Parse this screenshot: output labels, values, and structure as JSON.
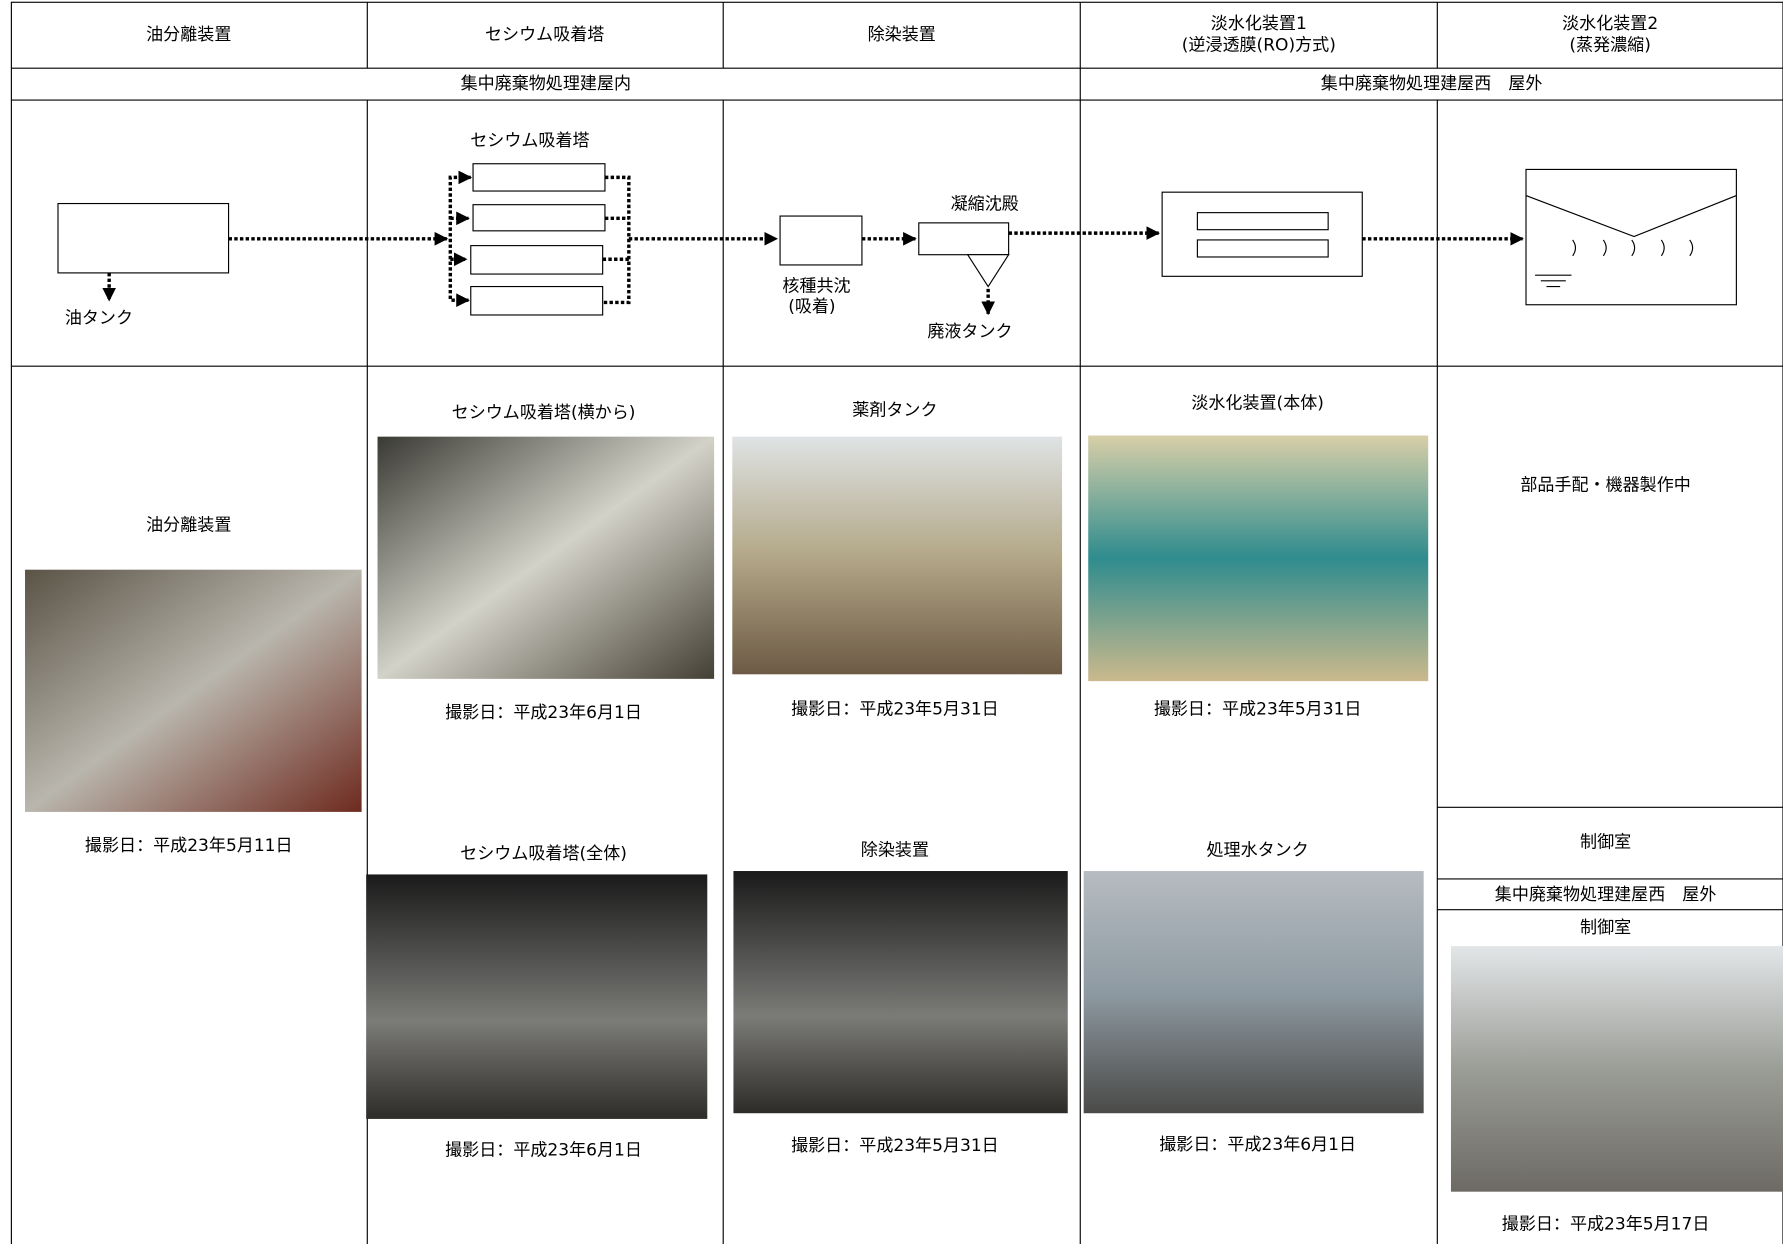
{
  "headers": [
    [
      "油分離装置"
    ],
    [
      "セシウム吸着塔"
    ],
    [
      "除染装置"
    ],
    [
      "淡水化装置1",
      "(逆浸透膜(RO)方式)"
    ],
    [
      "淡水化装置2",
      "(蒸発濃縮)"
    ]
  ],
  "locations": [
    "集中廃棄物処理建屋内",
    "集中廃棄物処理建屋西　屋外"
  ],
  "diagram": {
    "oil_tank": "油タンク",
    "cesium_tower": "セシウム吸着塔",
    "coprecipitation": [
      "核種共沈",
      "(吸着)"
    ],
    "coagulation": "凝縮沈殿",
    "waste_tank": "廃液タンク"
  },
  "photos": [
    {
      "title": "油分離装置",
      "date": "撮影日：平成23年5月11日"
    },
    {
      "title": "セシウム吸着塔(横から)",
      "date": "撮影日：平成23年6月1日"
    },
    {
      "title": "セシウム吸着塔(全体)",
      "date": "撮影日：平成23年6月1日"
    },
    {
      "title": "薬剤タンク",
      "date": "撮影日：平成23年5月31日"
    },
    {
      "title": "除染装置",
      "date": "撮影日：平成23年5月31日"
    },
    {
      "title": "淡水化装置(本体)",
      "date": "撮影日：平成23年5月31日"
    },
    {
      "title": "処理水タンク",
      "date": "撮影日：平成23年6月1日"
    }
  ],
  "status": "部品手配・機器製作中",
  "control_room": {
    "header": "制御室",
    "location": "集中廃棄物処理建屋西　屋外",
    "title": "制御室",
    "date": "撮影日：平成23年5月17日"
  }
}
